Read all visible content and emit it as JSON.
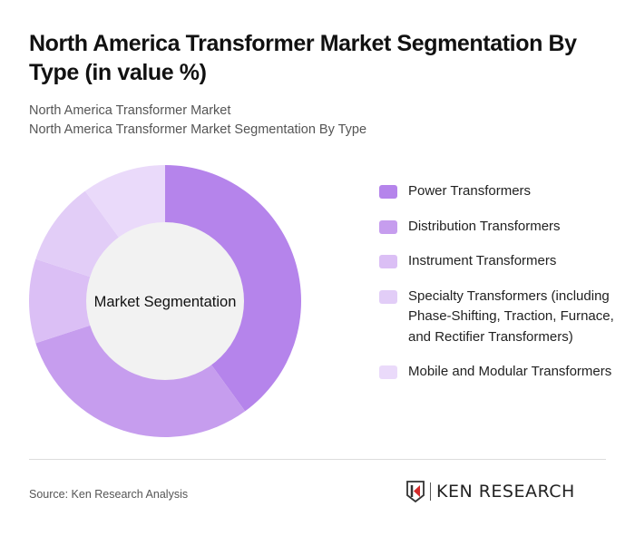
{
  "header": {
    "title": "North America Transformer Market Segmentation By Type (in value %)",
    "subtitle_line1": "North America Transformer Market",
    "subtitle_line2": "North America Transformer Market Segmentation By Type"
  },
  "chart_data": {
    "type": "pie",
    "variant": "donut",
    "title": "North America Transformer Market Segmentation By Type (in value %)",
    "center_label": "Market Segmentation",
    "categories": [
      "Power Transformers",
      "Distribution Transformers",
      "Instrument Transformers",
      "Specialty Transformers (including Phase-Shifting, Traction, Furnace, and Rectifier Transformers)",
      "Mobile and Modular Transformers"
    ],
    "values": [
      40,
      30,
      10,
      10,
      10
    ],
    "colors": [
      "#B584EB",
      "#C69DEE",
      "#DBBFF5",
      "#E2CDF7",
      "#EADAFA"
    ],
    "legend_position": "right"
  },
  "legend": {
    "items": [
      {
        "label": "Power Transformers",
        "color": "#B584EB"
      },
      {
        "label": "Distribution Transformers",
        "color": "#C69DEE"
      },
      {
        "label": "Instrument Transformers",
        "color": "#DBBFF5"
      },
      {
        "label": "Specialty Transformers (including Phase-Shifting, Traction, Furnace, and Rectifier Transformers)",
        "color": "#E2CDF7"
      },
      {
        "label": "Mobile and Modular Transformers",
        "color": "#EADAFA"
      }
    ]
  },
  "footer": {
    "source": "Source: Ken Research Analysis",
    "logo_text": "KEN RESEARCH"
  }
}
